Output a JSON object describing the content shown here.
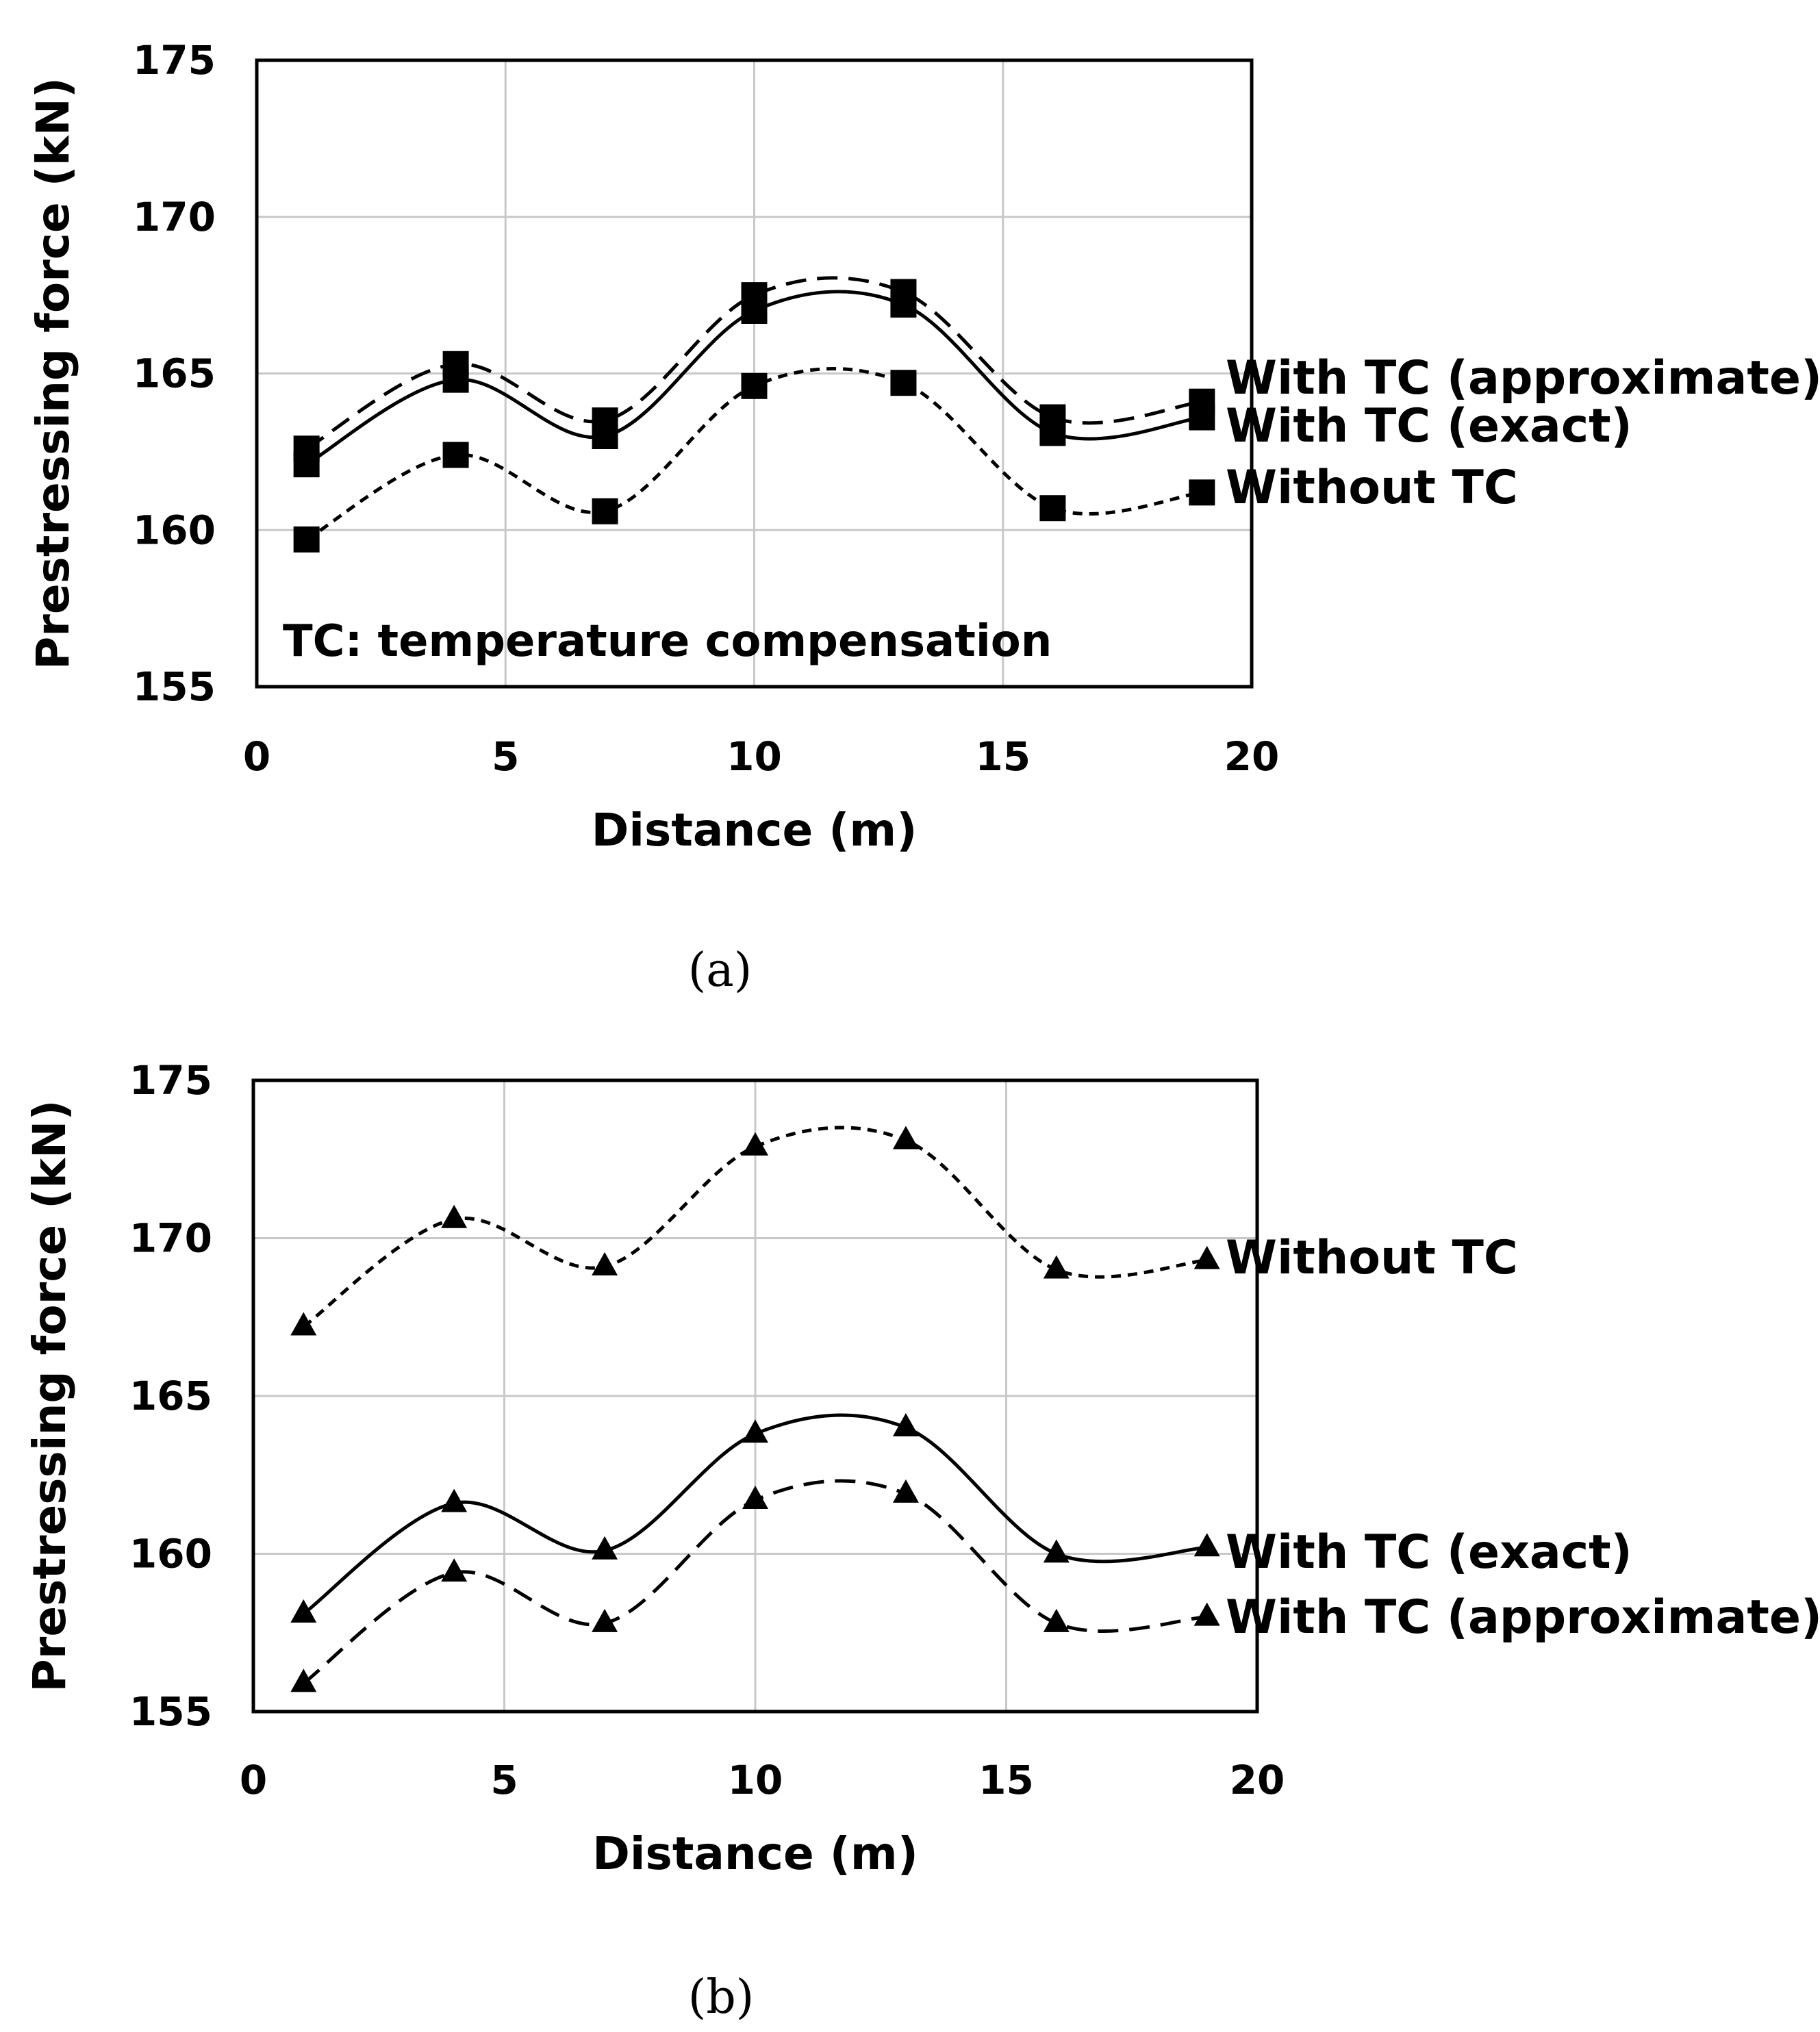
{
  "chart_data": [
    {
      "type": "line",
      "panel_caption": "(a)",
      "xlabel": "Distance (m)",
      "ylabel": "Prestressing force (kN)",
      "xlim": [
        0,
        20
      ],
      "ylim": [
        155,
        175
      ],
      "xticks": [
        0,
        5,
        10,
        15,
        20
      ],
      "yticks": [
        155,
        160,
        165,
        170,
        175
      ],
      "grid": true,
      "marker": "square",
      "annotation": "TC: temperature compensation",
      "x": [
        1,
        4,
        7,
        10,
        13,
        16,
        19
      ],
      "series": [
        {
          "name": "With TC (approximate)",
          "style": "dashed",
          "values": [
            162.6,
            165.3,
            163.5,
            167.5,
            167.6,
            163.6,
            164.1
          ]
        },
        {
          "name": "With TC (exact)",
          "style": "solid",
          "values": [
            162.1,
            164.8,
            163.0,
            167.0,
            167.2,
            163.1,
            163.6
          ]
        },
        {
          "name": "Without TC",
          "style": "dotted",
          "values": [
            159.7,
            162.4,
            160.6,
            164.6,
            164.7,
            160.7,
            161.2
          ]
        }
      ]
    },
    {
      "type": "line",
      "panel_caption": "(b)",
      "xlabel": "Distance (m)",
      "ylabel": "Prestressing force (kN)",
      "xlim": [
        0,
        20
      ],
      "ylim": [
        155,
        175
      ],
      "xticks": [
        0,
        5,
        10,
        15,
        20
      ],
      "yticks": [
        155,
        160,
        165,
        170,
        175
      ],
      "grid": true,
      "marker": "triangle",
      "x": [
        1,
        4,
        7,
        10,
        13,
        16,
        19
      ],
      "series": [
        {
          "name": "Without TC",
          "style": "dotted",
          "values": [
            167.2,
            170.6,
            169.1,
            172.9,
            173.1,
            169.0,
            169.3
          ]
        },
        {
          "name": "With TC (exact)",
          "style": "solid",
          "values": [
            158.1,
            161.6,
            160.1,
            163.8,
            164.0,
            160.0,
            160.2
          ]
        },
        {
          "name": "With TC (approximate)",
          "style": "dashed",
          "values": [
            155.9,
            159.4,
            157.8,
            161.7,
            161.9,
            157.8,
            158.0
          ]
        }
      ]
    }
  ]
}
